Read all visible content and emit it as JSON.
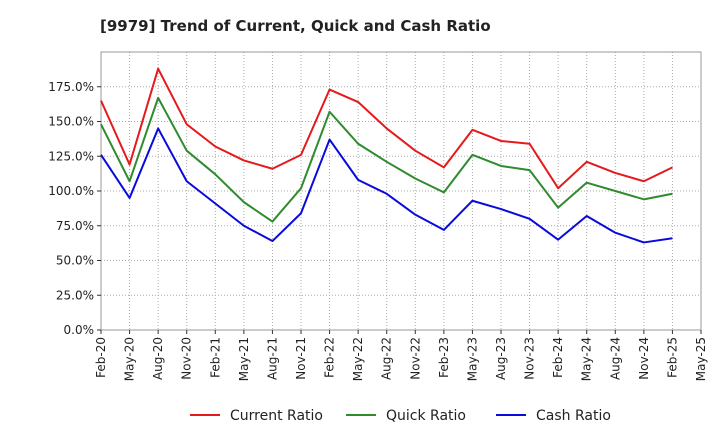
{
  "chart_data": {
    "type": "line",
    "title": "[9979]  Trend of Current, Quick and Cash Ratio",
    "xlabel": "",
    "ylabel": "",
    "ylim": [
      0,
      200
    ],
    "yticks": [
      0,
      25,
      50,
      75,
      100,
      125,
      150,
      175
    ],
    "ytick_labels": [
      "0.0%",
      "25.0%",
      "50.0%",
      "75.0%",
      "100.0%",
      "125.0%",
      "150.0%",
      "175.0%"
    ],
    "x_tick_labels": [
      "Feb-20",
      "May-20",
      "Aug-20",
      "Nov-20",
      "Feb-21",
      "May-21",
      "Aug-21",
      "Nov-21",
      "Feb-22",
      "May-22",
      "Aug-22",
      "Nov-22",
      "Feb-23",
      "May-23",
      "Aug-23",
      "Nov-23",
      "Feb-24",
      "May-24",
      "Aug-24",
      "Nov-24",
      "Feb-25",
      "May-25"
    ],
    "x_count": 22,
    "grid": true,
    "legend_position": "bottom",
    "series": [
      {
        "name": "Current Ratio",
        "color": "#e41a1c",
        "values": [
          165,
          119,
          188,
          148,
          132,
          122,
          116,
          126,
          173,
          164,
          145,
          129,
          117,
          144,
          136,
          134,
          102,
          121,
          113,
          107,
          117
        ]
      },
      {
        "name": "Quick Ratio",
        "color": "#2e8b2e",
        "values": [
          148,
          107,
          167,
          129,
          112,
          92,
          78,
          102,
          157,
          134,
          121,
          109,
          99,
          126,
          118,
          115,
          88,
          106,
          100,
          94,
          98
        ]
      },
      {
        "name": "Cash Ratio",
        "color": "#0a0adc",
        "values": [
          126,
          95,
          145,
          107,
          91,
          75,
          64,
          84,
          137,
          108,
          98,
          83,
          72,
          93,
          87,
          80,
          65,
          82,
          70,
          63,
          66
        ]
      }
    ]
  }
}
